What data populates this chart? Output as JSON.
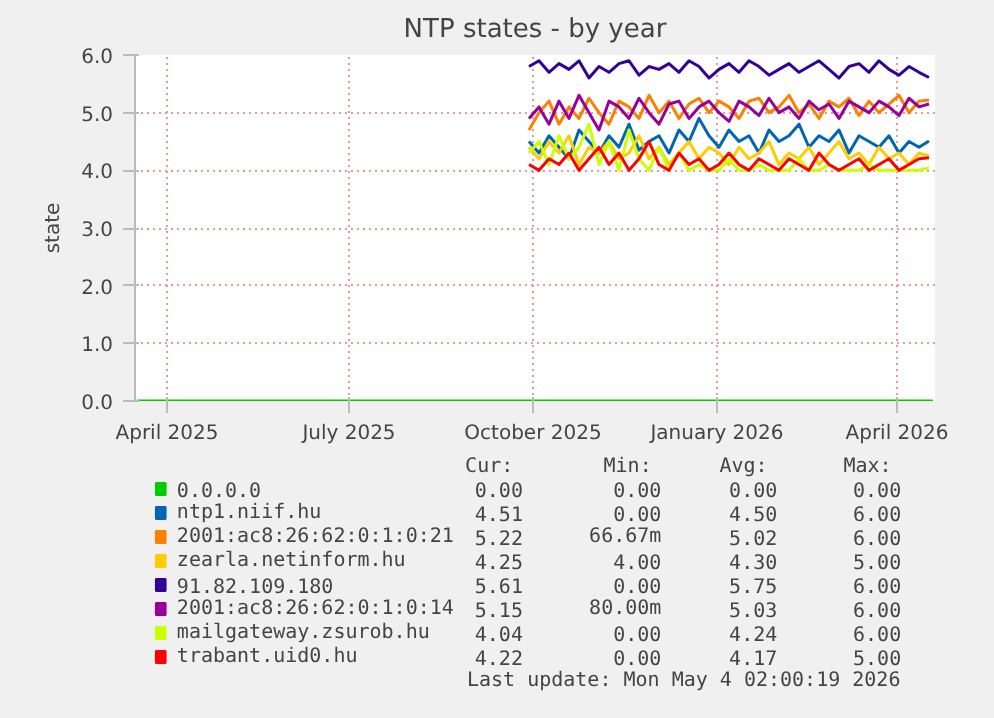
{
  "chart_data": {
    "type": "line",
    "title": "NTP states - by year",
    "ylabel": "state",
    "xlim": [
      "2025-03-16",
      "2026-04-20"
    ],
    "xticks": [
      {
        "value": "2025-04-01",
        "label": "April 2025"
      },
      {
        "value": "2025-07-01",
        "label": "July 2025"
      },
      {
        "value": "2025-10-01",
        "label": "October 2025"
      },
      {
        "value": "2026-01-01",
        "label": "January 2026"
      },
      {
        "value": "2026-04-01",
        "label": "April 2026"
      }
    ],
    "ylim": [
      0,
      6
    ],
    "yticks": [
      {
        "value": 0,
        "label": "0.0"
      },
      {
        "value": 1,
        "label": "1.0"
      },
      {
        "value": 2,
        "label": "2.0"
      },
      {
        "value": 3,
        "label": "3.0"
      },
      {
        "value": 4,
        "label": "4.0"
      },
      {
        "value": 5,
        "label": "5.0"
      },
      {
        "value": 6,
        "label": "6.0"
      }
    ],
    "grid": true,
    "legend": "bottom",
    "x": [
      "2025-09-29",
      "2025-10-04",
      "2025-10-09",
      "2025-10-14",
      "2025-10-19",
      "2025-10-24",
      "2025-10-29",
      "2025-11-03",
      "2025-11-08",
      "2025-11-13",
      "2025-11-18",
      "2025-11-23",
      "2025-11-28",
      "2025-12-03",
      "2025-12-08",
      "2025-12-13",
      "2025-12-18",
      "2025-12-23",
      "2025-12-28",
      "2026-01-02",
      "2026-01-07",
      "2026-01-12",
      "2026-01-17",
      "2026-01-22",
      "2026-01-27",
      "2026-02-01",
      "2026-02-06",
      "2026-02-11",
      "2026-02-16",
      "2026-02-21",
      "2026-02-26",
      "2026-03-03",
      "2026-03-08",
      "2026-03-13",
      "2026-03-18",
      "2026-03-23",
      "2026-03-28",
      "2026-04-02",
      "2026-04-07",
      "2026-04-12",
      "2026-04-17"
    ],
    "series": [
      {
        "name": "0.0.0.0",
        "color": "#00cc00",
        "x": [
          "2025-03-17",
          "2026-04-19"
        ],
        "values": [
          0,
          0
        ]
      },
      {
        "name": "ntp1.niif.hu",
        "color": "#0066b3",
        "values": [
          4.5,
          4.3,
          4.6,
          4.4,
          4.2,
          4.7,
          4.5,
          4.3,
          4.6,
          4.4,
          4.8,
          4.35,
          4.5,
          4.6,
          4.3,
          4.7,
          4.5,
          4.9,
          4.6,
          4.4,
          4.7,
          4.5,
          4.6,
          4.3,
          4.7,
          4.5,
          4.6,
          4.8,
          4.4,
          4.6,
          4.5,
          4.7,
          4.3,
          4.6,
          4.5,
          4.4,
          4.6,
          4.3,
          4.5,
          4.4,
          4.51
        ]
      },
      {
        "name": "2001:ac8:26:62:0:1:0:21",
        "color": "#ff8000",
        "values": [
          4.7,
          5.0,
          5.2,
          4.8,
          5.1,
          4.9,
          5.25,
          5.0,
          4.8,
          5.2,
          5.1,
          4.9,
          5.3,
          5.0,
          5.2,
          4.9,
          5.15,
          5.25,
          5.0,
          5.2,
          5.1,
          4.9,
          5.2,
          5.25,
          5.0,
          5.1,
          5.3,
          5.0,
          5.15,
          4.9,
          5.2,
          5.1,
          5.25,
          4.95,
          5.2,
          5.0,
          5.15,
          5.3,
          5.0,
          5.2,
          5.22
        ]
      },
      {
        "name": "zearla.netinform.hu",
        "color": "#ffcc00",
        "values": [
          4.4,
          4.2,
          4.5,
          4.3,
          4.6,
          4.1,
          4.4,
          4.3,
          4.5,
          4.2,
          4.3,
          4.6,
          4.2,
          4.4,
          4.1,
          4.3,
          4.5,
          4.2,
          4.4,
          4.3,
          4.1,
          4.4,
          4.2,
          4.3,
          4.5,
          4.1,
          4.3,
          4.2,
          4.4,
          4.1,
          4.3,
          4.5,
          4.2,
          4.3,
          4.1,
          4.4,
          4.2,
          4.3,
          4.1,
          4.3,
          4.25
        ]
      },
      {
        "name": "91.82.109.180",
        "color": "#330099",
        "values": [
          5.8,
          5.9,
          5.7,
          5.85,
          5.75,
          5.9,
          5.6,
          5.8,
          5.7,
          5.85,
          5.9,
          5.65,
          5.8,
          5.75,
          5.85,
          5.7,
          5.9,
          5.8,
          5.6,
          5.75,
          5.85,
          5.7,
          5.9,
          5.8,
          5.65,
          5.75,
          5.85,
          5.7,
          5.8,
          5.9,
          5.75,
          5.6,
          5.8,
          5.85,
          5.7,
          5.9,
          5.75,
          5.65,
          5.8,
          5.7,
          5.61
        ]
      },
      {
        "name": "2001:ac8:26:62:0:1:0:14",
        "color": "#990099",
        "values": [
          4.9,
          5.1,
          4.8,
          5.2,
          4.9,
          5.3,
          5.0,
          4.7,
          5.2,
          5.1,
          4.9,
          5.25,
          5.0,
          4.8,
          5.15,
          5.2,
          4.9,
          5.1,
          5.2,
          5.0,
          4.85,
          5.2,
          5.1,
          4.95,
          5.25,
          5.0,
          5.1,
          4.9,
          5.2,
          5.05,
          5.15,
          4.9,
          5.2,
          5.1,
          5.0,
          5.2,
          5.1,
          4.95,
          5.25,
          5.1,
          5.15
        ]
      },
      {
        "name": "mailgateway.zsurob.hu",
        "color": "#ccff00",
        "values": [
          4.3,
          4.5,
          4.1,
          4.6,
          4.2,
          4.4,
          4.8,
          4.1,
          4.5,
          4.0,
          4.7,
          4.2,
          4.0,
          4.4,
          4.0,
          4.3,
          4.0,
          4.1,
          4.0,
          4.0,
          4.2,
          4.0,
          4.0,
          4.1,
          4.0,
          4.0,
          4.0,
          4.2,
          4.0,
          4.0,
          4.1,
          4.0,
          4.0,
          4.0,
          4.1,
          4.0,
          4.0,
          4.0,
          4.0,
          4.0,
          4.04
        ]
      },
      {
        "name": "trabant.uid0.hu",
        "color": "#ff0000",
        "values": [
          4.1,
          4.0,
          4.2,
          4.1,
          4.3,
          4.0,
          4.2,
          4.4,
          4.1,
          4.3,
          4.0,
          4.2,
          4.5,
          4.1,
          4.0,
          4.3,
          4.1,
          4.2,
          4.0,
          4.1,
          4.3,
          4.1,
          4.0,
          4.2,
          4.1,
          4.0,
          4.2,
          4.1,
          4.0,
          4.3,
          4.1,
          4.0,
          4.1,
          4.2,
          4.0,
          4.1,
          4.2,
          4.0,
          4.1,
          4.2,
          4.22
        ]
      }
    ],
    "annotations": [
      "Cur:",
      "Min:",
      "Avg:",
      "Max:",
      "0.00",
      "0.00",
      "0.00",
      "0.00",
      "4.51",
      "0.00",
      "4.50",
      "6.00",
      "5.22",
      "66.67m",
      "5.02",
      "6.00",
      "4.25",
      "4.00",
      "4.30",
      "5.00",
      "5.61",
      "0.00",
      "5.75",
      "6.00",
      "5.15",
      "80.00m",
      "5.03",
      "6.00",
      "4.04",
      "0.00",
      "4.24",
      "6.00",
      "4.22",
      "0.00",
      "4.17",
      "5.00",
      "Last update: Mon May  4 02:00:19 2026"
    ]
  }
}
